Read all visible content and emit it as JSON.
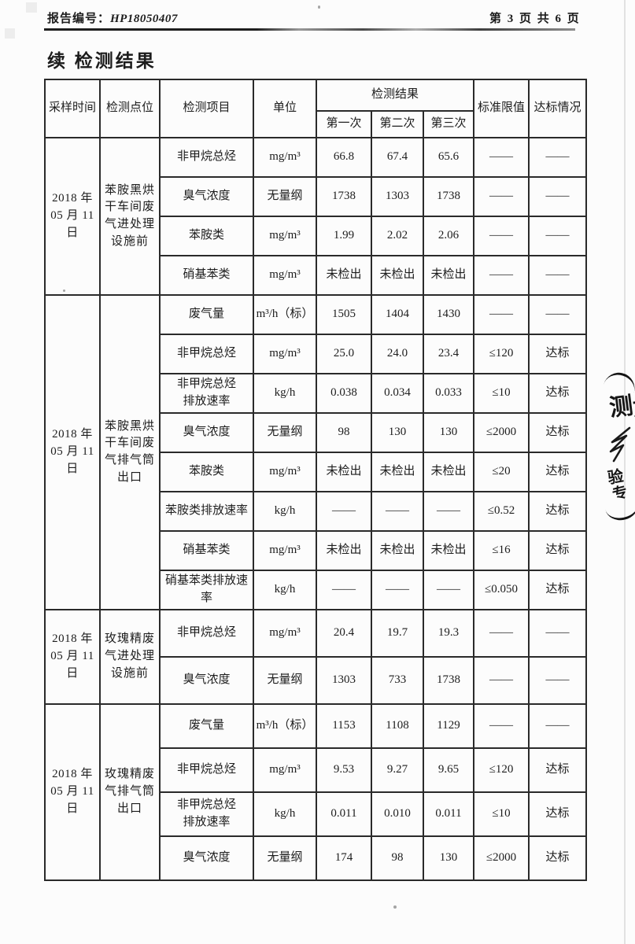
{
  "page": {
    "report_label": "报告编号：",
    "report_number": "HP18050407",
    "page_info": "第 3 页 共 6 页",
    "title": "续 检测结果"
  },
  "table": {
    "headers": {
      "sample_time": "采样时间",
      "location": "检测点位",
      "item": "检测项目",
      "unit": "单位",
      "result_group": "检测结果",
      "run1": "第一次",
      "run2": "第二次",
      "run3": "第三次",
      "limit": "标准限值",
      "compliance": "达标情况"
    },
    "groups": [
      {
        "time": "2018 年\n05 月 11 日",
        "location": "苯胺黑烘\n干车间废\n气进处理\n设施前",
        "rows": [
          {
            "item": "非甲烷总烃",
            "unit": "mg/m³",
            "r1": "66.8",
            "r2": "67.4",
            "r3": "65.6",
            "limit": "——",
            "status": "——"
          },
          {
            "item": "臭气浓度",
            "unit": "无量纲",
            "r1": "1738",
            "r2": "1303",
            "r3": "1738",
            "limit": "——",
            "status": "——"
          },
          {
            "item": "苯胺类",
            "unit": "mg/m³",
            "r1": "1.99",
            "r2": "2.02",
            "r3": "2.06",
            "limit": "——",
            "status": "——"
          },
          {
            "item": "硝基苯类",
            "unit": "mg/m³",
            "r1": "未检出",
            "r2": "未检出",
            "r3": "未检出",
            "limit": "——",
            "status": "——"
          }
        ]
      },
      {
        "time": "2018 年\n05 月 11 日",
        "location": "苯胺黑烘\n干车间废\n气排气筒\n出口",
        "rows": [
          {
            "item": "废气量",
            "unit": "m³/h（标）",
            "r1": "1505",
            "r2": "1404",
            "r3": "1430",
            "limit": "——",
            "status": "——"
          },
          {
            "item": "非甲烷总烃",
            "unit": "mg/m³",
            "r1": "25.0",
            "r2": "24.0",
            "r3": "23.4",
            "limit": "≤120",
            "status": "达标"
          },
          {
            "item": "非甲烷总烃\n排放速率",
            "unit": "kg/h",
            "r1": "0.038",
            "r2": "0.034",
            "r3": "0.033",
            "limit": "≤10",
            "status": "达标"
          },
          {
            "item": "臭气浓度",
            "unit": "无量纲",
            "r1": "98",
            "r2": "130",
            "r3": "130",
            "limit": "≤2000",
            "status": "达标"
          },
          {
            "item": "苯胺类",
            "unit": "mg/m³",
            "r1": "未检出",
            "r2": "未检出",
            "r3": "未检出",
            "limit": "≤20",
            "status": "达标"
          },
          {
            "item": "苯胺类排放速率",
            "unit": "kg/h",
            "r1": "——",
            "r2": "——",
            "r3": "——",
            "limit": "≤0.52",
            "status": "达标"
          },
          {
            "item": "硝基苯类",
            "unit": "mg/m³",
            "r1": "未检出",
            "r2": "未检出",
            "r3": "未检出",
            "limit": "≤16",
            "status": "达标"
          },
          {
            "item": "硝基苯类排放速\n率",
            "unit": "kg/h",
            "r1": "——",
            "r2": "——",
            "r3": "——",
            "limit": "≤0.050",
            "status": "达标"
          }
        ]
      },
      {
        "time": "2018 年\n05 月 11 日",
        "location": "玫瑰精废\n气进处理\n设施前",
        "rows": [
          {
            "item": "非甲烷总烃",
            "unit": "mg/m³",
            "r1": "20.4",
            "r2": "19.7",
            "r3": "19.3",
            "limit": "——",
            "status": "——"
          },
          {
            "item": "臭气浓度",
            "unit": "无量纲",
            "r1": "1303",
            "r2": "733",
            "r3": "1738",
            "limit": "——",
            "status": "——"
          }
        ]
      },
      {
        "time": "2018 年\n05 月 11 日",
        "location": "玫瑰精废\n气排气筒\n出口",
        "rows": [
          {
            "item": "废气量",
            "unit": "m³/h（标）",
            "r1": "1153",
            "r2": "1108",
            "r3": "1129",
            "limit": "——",
            "status": "——"
          },
          {
            "item": "非甲烷总烃",
            "unit": "mg/m³",
            "r1": "9.53",
            "r2": "9.27",
            "r3": "9.65",
            "limit": "≤120",
            "status": "达标"
          },
          {
            "item": "非甲烷总烃\n排放速率",
            "unit": "kg/h",
            "r1": "0.011",
            "r2": "0.010",
            "r3": "0.011",
            "limit": "≤10",
            "status": "达标"
          },
          {
            "item": "臭气浓度",
            "unit": "无量纲",
            "r1": "174",
            "r2": "98",
            "r3": "130",
            "limit": "≤2000",
            "status": "达标"
          }
        ]
      }
    ]
  },
  "stamp": {
    "char_big": "测",
    "char_clipped": "方",
    "char_small_1": "验",
    "char_small_2": "专"
  }
}
